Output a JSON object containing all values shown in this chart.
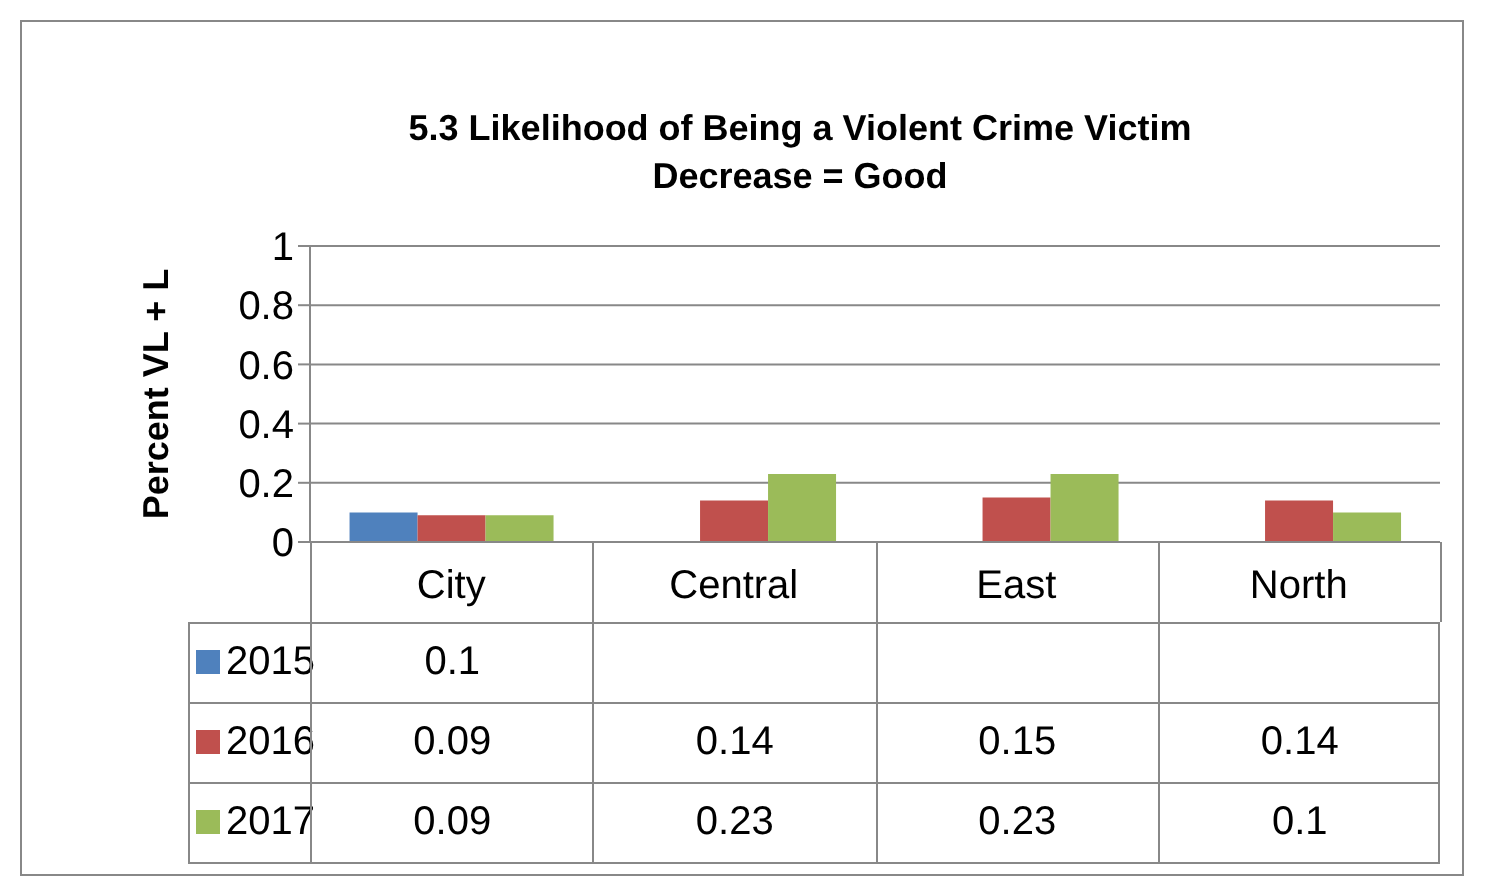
{
  "chart_data": {
    "type": "bar",
    "title": "5.3 Likelihood of Being a Violent Crime Victim",
    "subtitle": "Decrease = Good",
    "ylabel": "Percent VL + L",
    "categories": [
      "City",
      "Central",
      "East",
      "North"
    ],
    "series": [
      {
        "name": "2015",
        "color": "#4f81bd",
        "values": [
          0.1,
          null,
          null,
          null
        ]
      },
      {
        "name": "2016",
        "color": "#c0504d",
        "values": [
          0.09,
          0.14,
          0.15,
          0.14
        ]
      },
      {
        "name": "2017",
        "color": "#9bbb59",
        "values": [
          0.09,
          0.23,
          0.23,
          0.1
        ]
      }
    ],
    "ylim": [
      0,
      1
    ],
    "yticks": [
      0,
      0.2,
      0.4,
      0.6,
      0.8,
      1
    ],
    "grid": "y",
    "legend": "bottom",
    "data_labels": true
  }
}
